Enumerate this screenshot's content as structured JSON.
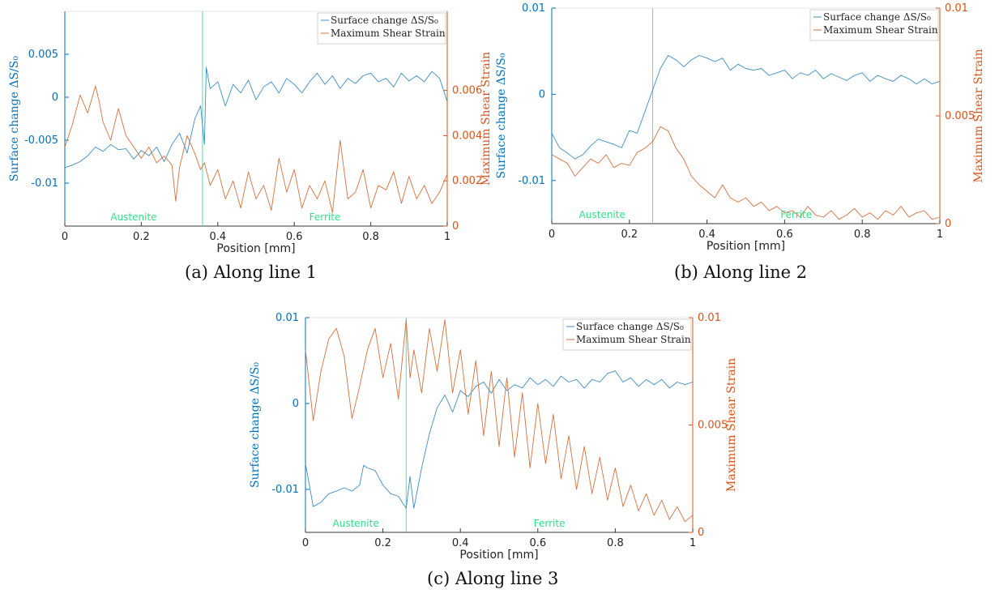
{
  "figure": {
    "captions": [
      "(a) Along line 1",
      "(b) Along line 2",
      "(c) Along line 3"
    ]
  },
  "colors": {
    "surface": "#3a8fc0",
    "shear": "#d4703c",
    "left_axis": "#0072bd",
    "right_axis": "#d95319",
    "boundary": "#4be2b0",
    "region_label": "#2fe08a"
  },
  "chart_data": [
    {
      "type": "line",
      "caption": "(a) Along line 1",
      "xlabel": "Position [mm]",
      "ylabel_left": "Surface change ΔS/S₀",
      "ylabel_right": "Maximum Shear Strain",
      "xlim": [
        0,
        1
      ],
      "ylim_left": [
        -0.015,
        0.01
      ],
      "ylim_right": [
        0,
        0.0095
      ],
      "xticks": [
        "0",
        "0.2",
        "0.4",
        "0.6",
        "0.8",
        "1"
      ],
      "yticks_left": [
        "0.005",
        "0",
        "-0.005",
        "-0.01"
      ],
      "yticks_right": [
        "0",
        "0.002",
        "0.004",
        "0.006"
      ],
      "boundary_x": 0.36,
      "regions": [
        "Austenite",
        "Ferrite"
      ],
      "legend": [
        "Surface change ΔS/S₀",
        "Maximum Shear Strain"
      ],
      "legend_position": "top-right",
      "grid": false,
      "series": [
        {
          "name": "Surface change ΔS/S₀",
          "axis": "left",
          "x": [
            0,
            0.02,
            0.04,
            0.06,
            0.08,
            0.1,
            0.12,
            0.14,
            0.16,
            0.18,
            0.2,
            0.22,
            0.24,
            0.26,
            0.28,
            0.3,
            0.32,
            0.34,
            0.355,
            0.365,
            0.37,
            0.38,
            0.4,
            0.42,
            0.44,
            0.46,
            0.48,
            0.5,
            0.52,
            0.54,
            0.56,
            0.58,
            0.6,
            0.62,
            0.64,
            0.66,
            0.68,
            0.7,
            0.72,
            0.74,
            0.76,
            0.78,
            0.8,
            0.82,
            0.84,
            0.86,
            0.88,
            0.9,
            0.92,
            0.94,
            0.96,
            0.98,
            1.0
          ],
          "y": [
            -0.0082,
            -0.0079,
            -0.0075,
            -0.0068,
            -0.0058,
            -0.0063,
            -0.0055,
            -0.0061,
            -0.006,
            -0.0072,
            -0.0062,
            -0.0068,
            -0.0058,
            -0.0075,
            -0.0055,
            -0.0042,
            -0.0065,
            -0.0025,
            -0.001,
            -0.0055,
            0.0035,
            0.001,
            0.0018,
            -0.001,
            0.0015,
            0.0005,
            0.002,
            -0.0003,
            0.0012,
            0.0018,
            0.0005,
            0.0022,
            0.0015,
            0.0005,
            0.0018,
            0.0028,
            0.0015,
            0.0025,
            0.001,
            0.0022,
            0.0016,
            0.0025,
            0.0028,
            0.0018,
            0.0022,
            0.0012,
            0.0028,
            0.0019,
            0.0025,
            0.0018,
            0.003,
            0.0022,
            -0.0005
          ]
        },
        {
          "name": "Maximum Shear Strain",
          "axis": "right",
          "x": [
            0,
            0.02,
            0.04,
            0.06,
            0.08,
            0.09,
            0.1,
            0.12,
            0.14,
            0.16,
            0.18,
            0.2,
            0.22,
            0.24,
            0.26,
            0.28,
            0.29,
            0.3,
            0.32,
            0.34,
            0.355,
            0.365,
            0.38,
            0.4,
            0.42,
            0.44,
            0.46,
            0.48,
            0.5,
            0.52,
            0.54,
            0.56,
            0.58,
            0.6,
            0.62,
            0.64,
            0.66,
            0.68,
            0.7,
            0.72,
            0.74,
            0.76,
            0.78,
            0.8,
            0.82,
            0.84,
            0.86,
            0.88,
            0.9,
            0.92,
            0.94,
            0.96,
            0.98,
            1.0
          ],
          "y": [
            0.0035,
            0.0045,
            0.0058,
            0.005,
            0.0062,
            0.0055,
            0.0046,
            0.0038,
            0.0052,
            0.004,
            0.0035,
            0.003,
            0.0035,
            0.0028,
            0.0031,
            0.0027,
            0.0011,
            0.0026,
            0.004,
            0.0032,
            0.0025,
            0.0028,
            0.0018,
            0.0025,
            0.0012,
            0.002,
            0.0008,
            0.0024,
            0.0012,
            0.0018,
            0.0007,
            0.003,
            0.0015,
            0.0025,
            0.0008,
            0.0018,
            0.0012,
            0.002,
            0.0006,
            0.0038,
            0.0012,
            0.0015,
            0.0025,
            0.0008,
            0.0018,
            0.0016,
            0.0024,
            0.001,
            0.0022,
            0.0012,
            0.0018,
            0.001,
            0.0015,
            0.0023
          ]
        }
      ]
    },
    {
      "type": "line",
      "caption": "(b) Along line 2",
      "xlabel": "Position [mm]",
      "ylabel_left": "Surface change ΔS/S₀",
      "ylabel_right": "Maximum Shear Strain",
      "xlim": [
        0,
        1
      ],
      "ylim_left": [
        -0.015,
        0.01
      ],
      "ylim_right": [
        0,
        0.01
      ],
      "xticks": [
        "0",
        "0.2",
        "0.4",
        "0.6",
        "0.8",
        "1"
      ],
      "yticks_left": [
        "0.01",
        "0",
        "-0.01"
      ],
      "yticks_right": [
        "0",
        "0.005",
        "0.01"
      ],
      "boundary_x": 0.26,
      "regions": [
        "Austenite",
        "Ferrite"
      ],
      "legend": [
        "Surface change ΔS/S₀",
        "Maximum Shear Strain"
      ],
      "legend_position": "top-right",
      "grid": false,
      "series": [
        {
          "name": "Surface change ΔS/S₀",
          "axis": "left",
          "x": [
            0,
            0.02,
            0.04,
            0.06,
            0.08,
            0.1,
            0.12,
            0.14,
            0.16,
            0.18,
            0.2,
            0.22,
            0.24,
            0.26,
            0.28,
            0.3,
            0.32,
            0.34,
            0.36,
            0.38,
            0.4,
            0.42,
            0.44,
            0.46,
            0.48,
            0.5,
            0.52,
            0.54,
            0.56,
            0.58,
            0.6,
            0.62,
            0.64,
            0.66,
            0.68,
            0.7,
            0.72,
            0.74,
            0.76,
            0.78,
            0.8,
            0.82,
            0.84,
            0.86,
            0.88,
            0.9,
            0.92,
            0.94,
            0.96,
            0.98,
            1.0
          ],
          "y": [
            -0.0045,
            -0.0062,
            -0.0068,
            -0.0075,
            -0.007,
            -0.006,
            -0.0052,
            -0.0055,
            -0.0058,
            -0.0062,
            -0.0042,
            -0.0045,
            -0.002,
            0.0005,
            0.003,
            0.0045,
            0.004,
            0.0032,
            0.004,
            0.0045,
            0.0042,
            0.0038,
            0.0042,
            0.0028,
            0.0035,
            0.003,
            0.0028,
            0.003,
            0.0022,
            0.0025,
            0.0028,
            0.0018,
            0.0025,
            0.0022,
            0.0028,
            0.0018,
            0.0024,
            0.002,
            0.0016,
            0.0022,
            0.0025,
            0.0015,
            0.0022,
            0.0018,
            0.0015,
            0.0022,
            0.0018,
            0.0012,
            0.0018,
            0.0012,
            0.0015
          ]
        },
        {
          "name": "Maximum Shear Strain",
          "axis": "right",
          "x": [
            0,
            0.02,
            0.04,
            0.06,
            0.08,
            0.1,
            0.12,
            0.14,
            0.16,
            0.18,
            0.2,
            0.22,
            0.24,
            0.26,
            0.28,
            0.3,
            0.32,
            0.34,
            0.36,
            0.38,
            0.4,
            0.42,
            0.44,
            0.46,
            0.48,
            0.5,
            0.52,
            0.54,
            0.56,
            0.58,
            0.6,
            0.62,
            0.64,
            0.66,
            0.68,
            0.7,
            0.72,
            0.74,
            0.76,
            0.78,
            0.8,
            0.82,
            0.84,
            0.86,
            0.88,
            0.9,
            0.92,
            0.94,
            0.96,
            0.98,
            1.0
          ],
          "y": [
            0.0032,
            0.003,
            0.0028,
            0.0022,
            0.0026,
            0.003,
            0.0028,
            0.0032,
            0.0026,
            0.0028,
            0.0027,
            0.0033,
            0.0035,
            0.0038,
            0.0045,
            0.0043,
            0.0035,
            0.003,
            0.0022,
            0.0018,
            0.0015,
            0.0012,
            0.0018,
            0.0012,
            0.001,
            0.0012,
            0.0008,
            0.001,
            0.0006,
            0.0008,
            0.0005,
            0.0006,
            0.0003,
            0.0008,
            0.0004,
            0.0003,
            0.0006,
            0.0002,
            0.0004,
            0.0007,
            0.0003,
            0.0005,
            0.0002,
            0.0006,
            0.0004,
            0.0008,
            0.0003,
            0.0005,
            0.0006,
            0.0002,
            0.0003
          ]
        }
      ]
    },
    {
      "type": "line",
      "caption": "(c) Along line 3",
      "xlabel": "Position [mm]",
      "ylabel_left": "Surface change ΔS/S₀",
      "ylabel_right": "Maximum Shear Strain",
      "xlim": [
        0,
        1
      ],
      "ylim_left": [
        -0.015,
        0.01
      ],
      "ylim_right": [
        0,
        0.01
      ],
      "xticks": [
        "0",
        "0.2",
        "0.4",
        "0.6",
        "0.8",
        "1"
      ],
      "yticks_left": [
        "0.01",
        "0",
        "-0.01"
      ],
      "yticks_right": [
        "0",
        "0.005",
        "0.01"
      ],
      "boundary_x": 0.26,
      "regions": [
        "Austenite",
        "Ferrite"
      ],
      "legend": [
        "Surface change ΔS/S₀",
        "Maximum Shear Strain"
      ],
      "legend_position": "top-right",
      "grid": false,
      "series": [
        {
          "name": "Surface change ΔS/S₀",
          "axis": "left",
          "x": [
            0,
            0.02,
            0.04,
            0.06,
            0.08,
            0.1,
            0.12,
            0.14,
            0.15,
            0.16,
            0.18,
            0.2,
            0.22,
            0.24,
            0.26,
            0.27,
            0.28,
            0.3,
            0.32,
            0.34,
            0.36,
            0.38,
            0.4,
            0.42,
            0.44,
            0.46,
            0.48,
            0.5,
            0.52,
            0.54,
            0.56,
            0.58,
            0.6,
            0.62,
            0.64,
            0.66,
            0.68,
            0.7,
            0.72,
            0.74,
            0.76,
            0.78,
            0.8,
            0.82,
            0.84,
            0.86,
            0.88,
            0.9,
            0.92,
            0.94,
            0.96,
            0.98,
            1.0
          ],
          "y": [
            -0.007,
            -0.012,
            -0.0115,
            -0.0105,
            -0.0102,
            -0.0098,
            -0.0102,
            -0.0095,
            -0.0072,
            -0.0075,
            -0.0078,
            -0.0095,
            -0.0105,
            -0.0108,
            -0.0122,
            -0.0085,
            -0.0122,
            -0.0075,
            -0.0035,
            -0.0005,
            0.001,
            -0.001,
            0.0015,
            0.0008,
            0.002,
            0.0025,
            0.0012,
            0.0028,
            0.0015,
            0.0022,
            0.0018,
            0.003,
            0.0022,
            0.0028,
            0.002,
            0.0032,
            0.0025,
            0.0028,
            0.0018,
            0.0028,
            0.0025,
            0.0035,
            0.0038,
            0.0025,
            0.003,
            0.002,
            0.0028,
            0.0022,
            0.0028,
            0.0018,
            0.0025,
            0.0022,
            0.0025
          ]
        },
        {
          "name": "Maximum Shear Strain",
          "axis": "right",
          "x": [
            0,
            0.02,
            0.04,
            0.06,
            0.08,
            0.1,
            0.12,
            0.14,
            0.16,
            0.18,
            0.2,
            0.22,
            0.24,
            0.26,
            0.27,
            0.28,
            0.3,
            0.32,
            0.34,
            0.36,
            0.38,
            0.4,
            0.42,
            0.44,
            0.46,
            0.48,
            0.5,
            0.52,
            0.54,
            0.56,
            0.58,
            0.6,
            0.62,
            0.64,
            0.66,
            0.68,
            0.7,
            0.72,
            0.74,
            0.76,
            0.78,
            0.8,
            0.82,
            0.84,
            0.86,
            0.88,
            0.9,
            0.92,
            0.94,
            0.96,
            0.98,
            1.0
          ],
          "y": [
            0.0085,
            0.0052,
            0.0075,
            0.009,
            0.0095,
            0.0082,
            0.0053,
            0.0068,
            0.0085,
            0.0095,
            0.0072,
            0.0088,
            0.0062,
            0.0099,
            0.0072,
            0.0085,
            0.0065,
            0.0095,
            0.0075,
            0.0099,
            0.0065,
            0.0085,
            0.0055,
            0.008,
            0.0045,
            0.0075,
            0.004,
            0.0072,
            0.0035,
            0.0065,
            0.003,
            0.006,
            0.0032,
            0.0055,
            0.0025,
            0.0045,
            0.002,
            0.004,
            0.0018,
            0.0035,
            0.0015,
            0.003,
            0.0012,
            0.0022,
            0.001,
            0.0018,
            0.0008,
            0.0015,
            0.0006,
            0.0012,
            0.0005,
            0.0008
          ]
        }
      ]
    }
  ]
}
